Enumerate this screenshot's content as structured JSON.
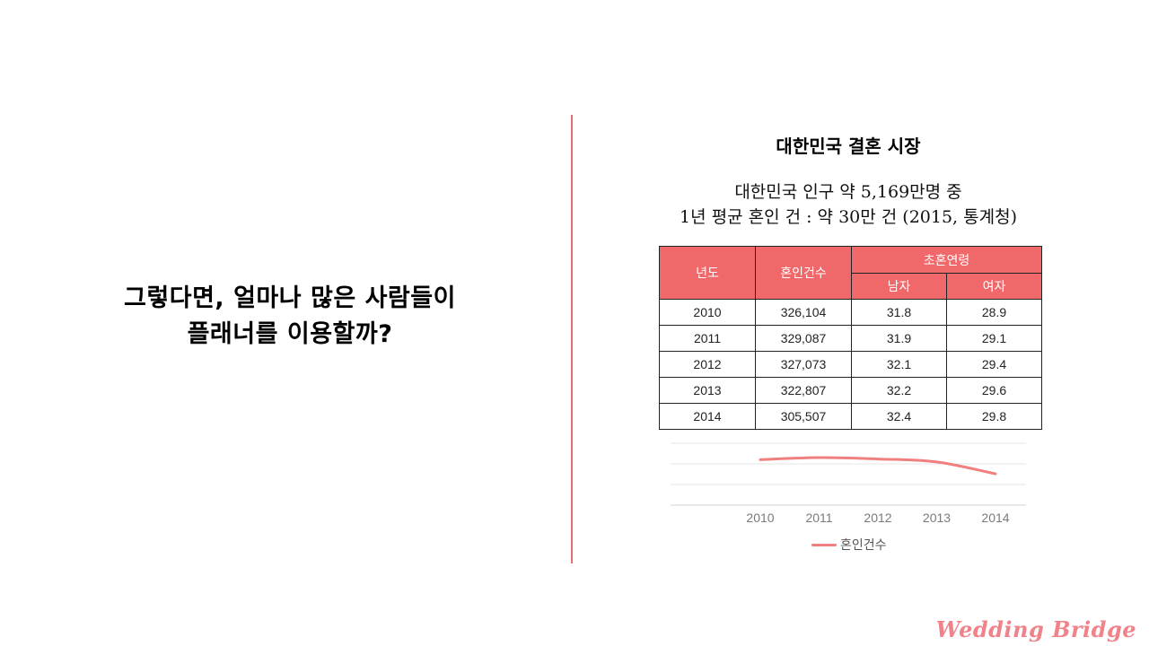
{
  "left": {
    "line1": "그렇다면, 얼마나 많은 사람들이",
    "line2": "플래너를 이용할까?"
  },
  "section_title": "대한민국 결혼 시장",
  "subtitle": {
    "line1": "대한민국 인구 약 5,169만명 중",
    "line2": "1년 평균 혼인 건 : 약 30만 건 (2015, 통계청)"
  },
  "table": {
    "headers": {
      "year": "년도",
      "count": "혼인건수",
      "first_marriage_age": "초혼연령",
      "male": "남자",
      "female": "여자"
    },
    "rows": [
      {
        "year": "2010",
        "count": "326,104",
        "male": "31.8",
        "female": "28.9"
      },
      {
        "year": "2011",
        "count": "329,087",
        "male": "31.9",
        "female": "29.1"
      },
      {
        "year": "2012",
        "count": "327,073",
        "male": "32.1",
        "female": "29.4"
      },
      {
        "year": "2013",
        "count": "322,807",
        "male": "32.2",
        "female": "29.6"
      },
      {
        "year": "2014",
        "count": "305,507",
        "male": "32.4",
        "female": "29.8"
      }
    ]
  },
  "chart_data": {
    "type": "line",
    "x": [
      "2010",
      "2011",
      "2012",
      "2013",
      "2014"
    ],
    "series": [
      {
        "name": "혼인건수",
        "values": [
          326104,
          329087,
          327073,
          322807,
          305507
        ],
        "color": "#f08080"
      }
    ],
    "ylim": [
      260000,
      350000
    ],
    "grid": true,
    "legend": "bottom"
  },
  "brand": {
    "logo_text": "Wedding Bridge",
    "accent_color": "#f1686a"
  }
}
